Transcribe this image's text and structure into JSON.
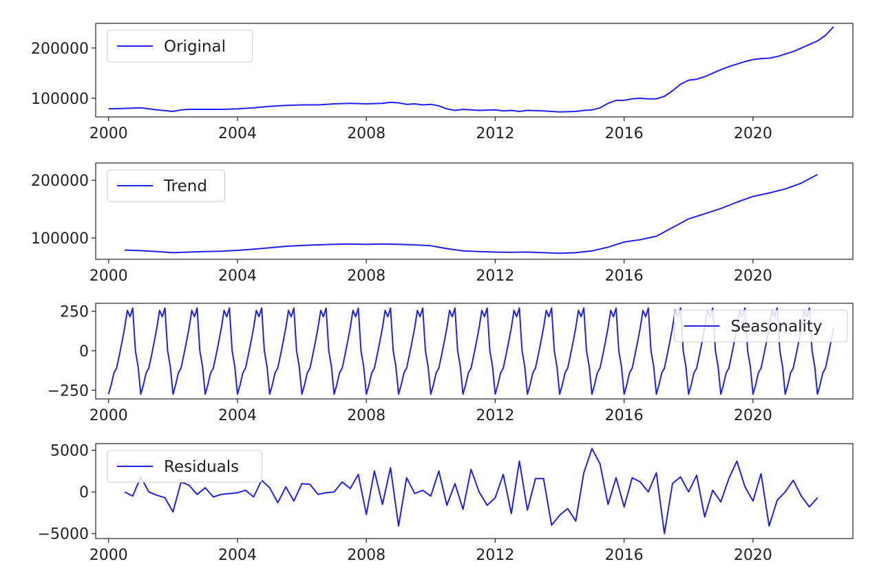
{
  "figure": {
    "line_color": "#1f1ff0",
    "frame_color": "#222222"
  },
  "chart_data": [
    {
      "type": "line",
      "title": "",
      "xlabel": "",
      "ylabel": "",
      "legend": {
        "label": "Original",
        "placement": "top-left"
      },
      "xlim": [
        1999.6,
        2023.1
      ],
      "ylim": [
        63000,
        249000
      ],
      "xticks": [
        2000,
        2004,
        2008,
        2012,
        2016,
        2020
      ],
      "xtick_labels": [
        "2000",
        "2004",
        "2008",
        "2012",
        "2016",
        "2020"
      ],
      "yticks": [
        100000,
        200000
      ],
      "ytick_labels": [
        "100000",
        "200000"
      ],
      "series": [
        {
          "name": "Original",
          "x": [
            2000.0,
            2000.5,
            2001.0,
            2001.5,
            2002.0,
            2002.25,
            2002.5,
            2003.0,
            2003.5,
            2004.0,
            2004.5,
            2005.0,
            2005.5,
            2006.0,
            2006.5,
            2007.0,
            2007.5,
            2008.0,
            2008.5,
            2008.75,
            2009.0,
            2009.25,
            2009.5,
            2009.75,
            2010.0,
            2010.25,
            2010.5,
            2010.75,
            2011.0,
            2011.5,
            2012.0,
            2012.25,
            2012.5,
            2012.75,
            2013.0,
            2013.5,
            2014.0,
            2014.5,
            2014.75,
            2015.0,
            2015.25,
            2015.5,
            2015.75,
            2016.0,
            2016.25,
            2016.5,
            2016.75,
            2017.0,
            2017.25,
            2017.5,
            2017.75,
            2018.0,
            2018.25,
            2018.5,
            2018.75,
            2019.0,
            2019.25,
            2019.5,
            2019.75,
            2020.0,
            2020.25,
            2020.5,
            2020.75,
            2021.0,
            2021.25,
            2021.5,
            2021.75,
            2022.0,
            2022.25,
            2022.5
          ],
          "y": [
            79000,
            80000,
            81000,
            77000,
            74000,
            77000,
            78000,
            78000,
            78000,
            79000,
            81000,
            84000,
            86000,
            87000,
            87000,
            89000,
            90000,
            89000,
            90000,
            92000,
            91000,
            88000,
            89000,
            87000,
            88000,
            85000,
            79000,
            76000,
            78000,
            76000,
            77000,
            75000,
            76000,
            74000,
            76000,
            75000,
            73000,
            74000,
            76000,
            77000,
            81000,
            90000,
            96000,
            96000,
            99000,
            100000,
            99000,
            99000,
            104000,
            115000,
            128000,
            136000,
            138000,
            143000,
            150000,
            157000,
            163000,
            168000,
            173000,
            177000,
            179000,
            180000,
            183000,
            188000,
            193000,
            200000,
            207000,
            214000,
            225000,
            242000
          ]
        }
      ]
    },
    {
      "type": "line",
      "title": "",
      "xlabel": "",
      "ylabel": "",
      "legend": {
        "label": "Trend",
        "placement": "top-left"
      },
      "xlim": [
        1999.6,
        2023.1
      ],
      "ylim": [
        63000,
        230000
      ],
      "xticks": [
        2000,
        2004,
        2008,
        2012,
        2016,
        2020
      ],
      "xtick_labels": [
        "2000",
        "2004",
        "2008",
        "2012",
        "2016",
        "2020"
      ],
      "yticks": [
        100000,
        200000
      ],
      "ytick_labels": [
        "100000",
        "200000"
      ],
      "series": [
        {
          "name": "Trend",
          "x": [
            2000.5,
            2001.0,
            2001.5,
            2002.0,
            2002.5,
            2003.0,
            2003.5,
            2004.0,
            2004.5,
            2005.0,
            2005.5,
            2006.0,
            2006.5,
            2007.0,
            2007.5,
            2008.0,
            2008.5,
            2009.0,
            2009.5,
            2010.0,
            2010.5,
            2011.0,
            2011.5,
            2012.0,
            2012.5,
            2013.0,
            2013.5,
            2014.0,
            2014.5,
            2015.0,
            2015.5,
            2016.0,
            2016.5,
            2017.0,
            2017.5,
            2018.0,
            2018.5,
            2019.0,
            2019.5,
            2020.0,
            2020.5,
            2021.0,
            2021.5,
            2022.0
          ],
          "y": [
            79000,
            78000,
            76500,
            74500,
            75500,
            76500,
            77000,
            78500,
            80500,
            83000,
            85500,
            87000,
            88000,
            89000,
            89500,
            89000,
            89500,
            89000,
            88000,
            86500,
            81500,
            77500,
            76500,
            75500,
            75000,
            75500,
            74500,
            73500,
            74500,
            77500,
            84000,
            93000,
            97000,
            103000,
            118000,
            133000,
            142000,
            151000,
            162000,
            172000,
            178000,
            185000,
            195000,
            210000
          ]
        }
      ]
    },
    {
      "type": "line",
      "title": "",
      "xlabel": "",
      "ylabel": "",
      "legend": {
        "label": "Seasonality",
        "placement": "top-right"
      },
      "xlim": [
        1999.6,
        2023.1
      ],
      "ylim": [
        -305,
        300
      ],
      "xticks": [
        2000,
        2004,
        2008,
        2012,
        2016,
        2020
      ],
      "xtick_labels": [
        "2000",
        "2004",
        "2008",
        "2012",
        "2016",
        "2020"
      ],
      "yticks": [
        -250,
        0,
        250
      ],
      "ytick_labels": [
        "−250",
        "0",
        "250"
      ],
      "seasonal_pattern": {
        "start_year": 2000,
        "end_year": 2022,
        "monthly_values": [
          -275,
          -215,
          -140,
          -110,
          -30,
          55,
          145,
          255,
          215,
          270,
          0,
          -100
        ]
      },
      "series": [
        {
          "name": "Seasonality",
          "x": [],
          "y": []
        }
      ]
    },
    {
      "type": "line",
      "title": "",
      "xlabel": "",
      "ylabel": "",
      "legend": {
        "label": "Residuals",
        "placement": "top-left"
      },
      "xlim": [
        1999.6,
        2023.1
      ],
      "ylim": [
        -5600,
        5800
      ],
      "xticks": [
        2000,
        2004,
        2008,
        2012,
        2016,
        2020
      ],
      "xtick_labels": [
        "2000",
        "2004",
        "2008",
        "2012",
        "2016",
        "2020"
      ],
      "yticks": [
        -5000,
        0,
        5000
      ],
      "ytick_labels": [
        "−5000",
        "0",
        "5000"
      ],
      "series": [
        {
          "name": "Residuals",
          "x": [
            2000.5,
            2000.75,
            2001.0,
            2001.25,
            2001.5,
            2001.75,
            2002.0,
            2002.25,
            2002.5,
            2002.75,
            2003.0,
            2003.25,
            2003.5,
            2003.75,
            2004.0,
            2004.25,
            2004.5,
            2004.75,
            2005.0,
            2005.25,
            2005.5,
            2005.75,
            2006.0,
            2006.25,
            2006.5,
            2006.75,
            2007.0,
            2007.25,
            2007.5,
            2007.75,
            2008.0,
            2008.25,
            2008.5,
            2008.75,
            2009.0,
            2009.25,
            2009.5,
            2009.75,
            2010.0,
            2010.25,
            2010.5,
            2010.75,
            2011.0,
            2011.25,
            2011.5,
            2011.75,
            2012.0,
            2012.25,
            2012.5,
            2012.75,
            2013.0,
            2013.25,
            2013.5,
            2013.75,
            2014.0,
            2014.25,
            2014.5,
            2014.75,
            2015.0,
            2015.25,
            2015.5,
            2015.75,
            2016.0,
            2016.25,
            2016.5,
            2016.75,
            2017.0,
            2017.25,
            2017.5,
            2017.75,
            2018.0,
            2018.25,
            2018.5,
            2018.75,
            2019.0,
            2019.25,
            2019.5,
            2019.75,
            2020.0,
            2020.25,
            2020.5,
            2020.75,
            2021.0,
            2021.25,
            2021.5,
            2021.75,
            2022.0
          ],
          "y": [
            0,
            -500,
            1800,
            0,
            -400,
            -700,
            -2400,
            1200,
            800,
            -300,
            500,
            -600,
            -300,
            -200,
            -100,
            200,
            -600,
            1400,
            500,
            -1300,
            600,
            -1100,
            1000,
            900,
            -300,
            -100,
            0,
            1200,
            400,
            2100,
            -2700,
            2500,
            -1500,
            2900,
            -4100,
            1700,
            -200,
            200,
            -500,
            2500,
            -1600,
            1000,
            -2100,
            2700,
            0,
            -1600,
            -700,
            2100,
            -2600,
            3700,
            -2200,
            1600,
            1600,
            -4000,
            -2800,
            -2000,
            -3500,
            2300,
            5200,
            3400,
            -1500,
            1700,
            -1800,
            1700,
            1200,
            0,
            2300,
            -5000,
            1000,
            1800,
            0,
            2000,
            -3000,
            200,
            -1200,
            1600,
            3700,
            600,
            -1100,
            2200,
            -4100,
            -1000,
            0,
            1400,
            -500,
            -1800,
            -700
          ]
        }
      ]
    }
  ]
}
